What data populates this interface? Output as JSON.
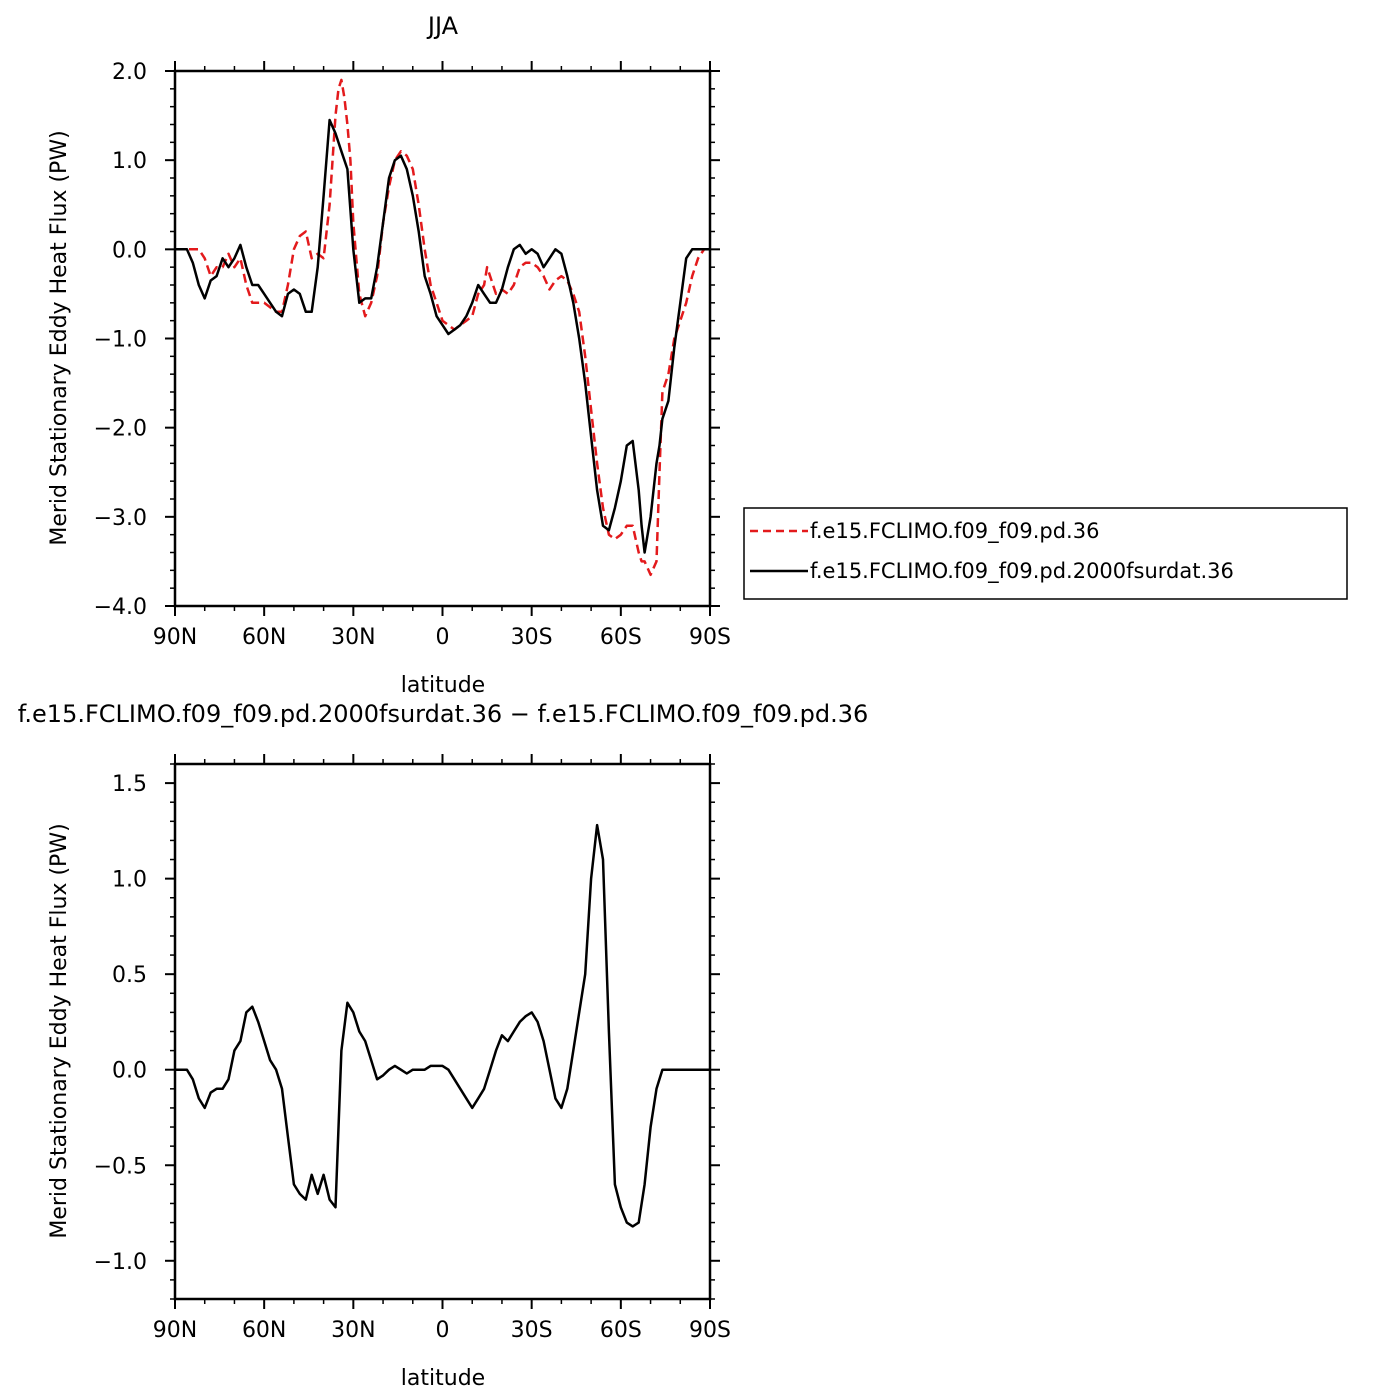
{
  "chart_data": [
    {
      "type": "line",
      "title": "JJA",
      "xlabel": "latitude",
      "ylabel": "Merid Stationary Eddy Heat Flux (PW)",
      "xlim": [
        -90,
        90
      ],
      "ylim": [
        -4.0,
        2.0
      ],
      "x_ticks": [
        -90,
        -60,
        -30,
        0,
        30,
        60,
        90
      ],
      "x_tick_labels": [
        "90N",
        "60N",
        "30N",
        "0",
        "30S",
        "60S",
        "90S"
      ],
      "y_ticks": [
        -4.0,
        -3.0,
        -2.0,
        -1.0,
        0.0,
        1.0,
        2.0
      ],
      "y_tick_labels": [
        "−4.0",
        "−3.0",
        "−2.0",
        "−1.0",
        "0.0",
        "1.0",
        "2.0"
      ],
      "grid": false,
      "legend_placement": "right, outside plot",
      "series": [
        {
          "name": "f.e15.FCLIMO.f09_f09.pd.36",
          "color": "#e31a1c",
          "style": "dashed",
          "x": [
            -90,
            -82,
            -80,
            -78,
            -76,
            -74,
            -72,
            -70,
            -68,
            -66,
            -64,
            -62,
            -60,
            -58,
            -56,
            -54,
            -52,
            -50,
            -48,
            -46,
            -44,
            -42,
            -40,
            -38,
            -36,
            -35,
            -34,
            -33,
            -32,
            -31,
            -30,
            -28,
            -26,
            -24,
            -22,
            -20,
            -18,
            -16,
            -14,
            -12,
            -10,
            -8,
            -6,
            -4,
            -2,
            0,
            2,
            4,
            6,
            8,
            10,
            12,
            14,
            15,
            16,
            18,
            20,
            22,
            24,
            26,
            28,
            30,
            32,
            34,
            36,
            38,
            40,
            42,
            44,
            46,
            48,
            50,
            52,
            54,
            56,
            58,
            60,
            62,
            64,
            66,
            67,
            68,
            70,
            72,
            73,
            74,
            76,
            78,
            80,
            82,
            84,
            86,
            88,
            90
          ],
          "y": [
            0,
            0,
            -0.1,
            -0.3,
            -0.2,
            -0.2,
            -0.05,
            -0.2,
            -0.1,
            -0.4,
            -0.6,
            -0.6,
            -0.6,
            -0.65,
            -0.7,
            -0.7,
            -0.4,
            0,
            0.15,
            0.2,
            -0.1,
            -0.05,
            -0.1,
            0.5,
            1.5,
            1.8,
            1.9,
            1.7,
            1.4,
            1.0,
            0.3,
            -0.5,
            -0.75,
            -0.6,
            -0.3,
            0.3,
            0.7,
            1.0,
            1.1,
            1.05,
            0.9,
            0.5,
            0.0,
            -0.4,
            -0.6,
            -0.8,
            -0.85,
            -0.9,
            -0.85,
            -0.8,
            -0.75,
            -0.5,
            -0.4,
            -0.2,
            -0.3,
            -0.5,
            -0.45,
            -0.5,
            -0.4,
            -0.2,
            -0.15,
            -0.15,
            -0.2,
            -0.3,
            -0.45,
            -0.35,
            -0.3,
            -0.35,
            -0.5,
            -0.7,
            -1.2,
            -1.8,
            -2.4,
            -2.9,
            -3.2,
            -3.25,
            -3.2,
            -3.1,
            -3.1,
            -3.4,
            -3.5,
            -3.5,
            -3.65,
            -3.5,
            -2.5,
            -1.6,
            -1.4,
            -1.0,
            -0.8,
            -0.6,
            -0.3,
            -0.1,
            0,
            0
          ]
        },
        {
          "name": "f.e15.FCLIMO.f09_f09.pd.2000fsurdat.36",
          "color": "#000000",
          "style": "solid",
          "x": [
            -90,
            -86,
            -84,
            -82,
            -80,
            -78,
            -76,
            -74,
            -72,
            -70,
            -68,
            -66,
            -64,
            -62,
            -60,
            -58,
            -56,
            -54,
            -52,
            -50,
            -48,
            -46,
            -44,
            -42,
            -40,
            -38,
            -36,
            -34,
            -32,
            -30,
            -28,
            -26,
            -24,
            -22,
            -20,
            -18,
            -16,
            -14,
            -12,
            -10,
            -8,
            -6,
            -4,
            -2,
            0,
            2,
            4,
            6,
            8,
            10,
            12,
            14,
            16,
            18,
            20,
            22,
            24,
            26,
            28,
            30,
            32,
            34,
            36,
            38,
            40,
            42,
            44,
            46,
            48,
            50,
            52,
            54,
            56,
            58,
            60,
            62,
            64,
            66,
            67,
            68,
            70,
            72,
            73,
            74,
            76,
            78,
            80,
            82,
            84,
            86,
            88,
            90
          ],
          "y": [
            0,
            0,
            -0.15,
            -0.4,
            -0.55,
            -0.35,
            -0.3,
            -0.1,
            -0.2,
            -0.1,
            0.05,
            -0.2,
            -0.4,
            -0.4,
            -0.5,
            -0.6,
            -0.7,
            -0.75,
            -0.5,
            -0.45,
            -0.5,
            -0.7,
            -0.7,
            -0.2,
            0.6,
            1.45,
            1.3,
            1.1,
            0.9,
            0.0,
            -0.6,
            -0.55,
            -0.55,
            -0.2,
            0.3,
            0.8,
            1.0,
            1.05,
            0.9,
            0.6,
            0.2,
            -0.3,
            -0.5,
            -0.75,
            -0.85,
            -0.95,
            -0.9,
            -0.85,
            -0.75,
            -0.6,
            -0.4,
            -0.5,
            -0.6,
            -0.6,
            -0.45,
            -0.2,
            0.0,
            0.05,
            -0.05,
            0.0,
            -0.05,
            -0.2,
            -0.1,
            0.0,
            -0.05,
            -0.3,
            -0.6,
            -1.0,
            -1.5,
            -2.1,
            -2.7,
            -3.1,
            -3.15,
            -2.9,
            -2.6,
            -2.2,
            -2.15,
            -2.7,
            -3.1,
            -3.4,
            -3.0,
            -2.4,
            -2.2,
            -1.9,
            -1.7,
            -1.1,
            -0.6,
            -0.1,
            0,
            0,
            0,
            0
          ]
        }
      ]
    },
    {
      "type": "line",
      "title": "f.e15.FCLIMO.f09_f09.pd.2000fsurdat.36 − f.e15.FCLIMO.f09_f09.pd.36",
      "xlabel": "latitude",
      "ylabel": "Merid Stationary Eddy Heat Flux (PW)",
      "xlim": [
        -90,
        90
      ],
      "ylim": [
        -1.2,
        1.6
      ],
      "x_ticks": [
        -90,
        -60,
        -30,
        0,
        30,
        60,
        90
      ],
      "x_tick_labels": [
        "90N",
        "60N",
        "30N",
        "0",
        "30S",
        "60S",
        "90S"
      ],
      "y_ticks": [
        -1.0,
        -0.5,
        0.0,
        0.5,
        1.0,
        1.5
      ],
      "y_tick_labels": [
        "−1.0",
        "−0.5",
        "0.0",
        "0.5",
        "1.0",
        "1.5"
      ],
      "grid": false,
      "series": [
        {
          "color": "#000000",
          "style": "solid",
          "x": [
            -90,
            -86,
            -84,
            -82,
            -80,
            -78,
            -76,
            -74,
            -72,
            -70,
            -68,
            -66,
            -64,
            -62,
            -60,
            -58,
            -56,
            -54,
            -52,
            -50,
            -48,
            -46,
            -44,
            -42,
            -40,
            -38,
            -36,
            -34,
            -32,
            -30,
            -28,
            -26,
            -24,
            -22,
            -20,
            -18,
            -16,
            -14,
            -12,
            -10,
            -8,
            -6,
            -4,
            -2,
            0,
            2,
            4,
            6,
            8,
            10,
            12,
            14,
            16,
            18,
            20,
            22,
            24,
            26,
            28,
            30,
            32,
            34,
            36,
            38,
            40,
            42,
            44,
            46,
            48,
            50,
            52,
            54,
            56,
            58,
            60,
            62,
            64,
            66,
            68,
            70,
            72,
            74,
            76,
            78,
            80,
            82,
            84,
            86,
            88,
            90
          ],
          "y": [
            0,
            0,
            -0.05,
            -0.15,
            -0.2,
            -0.12,
            -0.1,
            -0.1,
            -0.05,
            0.1,
            0.15,
            0.3,
            0.33,
            0.25,
            0.15,
            0.05,
            0.0,
            -0.1,
            -0.35,
            -0.6,
            -0.65,
            -0.68,
            -0.55,
            -0.65,
            -0.55,
            -0.68,
            -0.72,
            0.1,
            0.35,
            0.3,
            0.2,
            0.15,
            0.05,
            -0.05,
            -0.03,
            0.0,
            0.02,
            0.0,
            -0.02,
            0.0,
            0.0,
            0.0,
            0.02,
            0.02,
            0.02,
            0.0,
            -0.05,
            -0.1,
            -0.15,
            -0.2,
            -0.15,
            -0.1,
            0.0,
            0.1,
            0.18,
            0.15,
            0.2,
            0.25,
            0.28,
            0.3,
            0.25,
            0.15,
            0.0,
            -0.15,
            -0.2,
            -0.1,
            0.1,
            0.3,
            0.5,
            1.0,
            1.28,
            1.1,
            0.2,
            -0.6,
            -0.72,
            -0.8,
            -0.82,
            -0.8,
            -0.6,
            -0.3,
            -0.1,
            0,
            0,
            0,
            0,
            0,
            0,
            0,
            0,
            0
          ]
        }
      ]
    }
  ]
}
